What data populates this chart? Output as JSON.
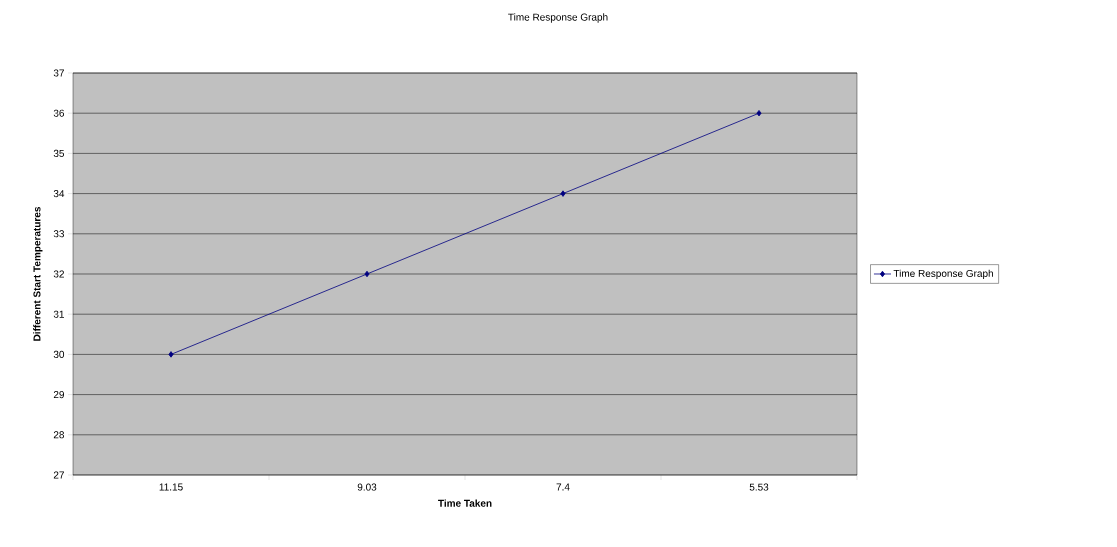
{
  "chart_data": {
    "type": "line",
    "title": "Time Response Graph",
    "xlabel": "Time Taken",
    "ylabel": "Different Start Temperatures",
    "categories": [
      "11.15",
      "9.03",
      "7.4",
      "5.53"
    ],
    "series": [
      {
        "name": "Time Response Graph",
        "color": "#000080",
        "values": [
          30,
          32,
          34,
          36
        ]
      }
    ],
    "ylim": [
      27,
      37
    ],
    "yticks": [
      27,
      28,
      29,
      30,
      31,
      32,
      33,
      34,
      35,
      36,
      37
    ],
    "grid": "y",
    "legend": "right",
    "marker": "diamond",
    "line_style": "solid"
  }
}
